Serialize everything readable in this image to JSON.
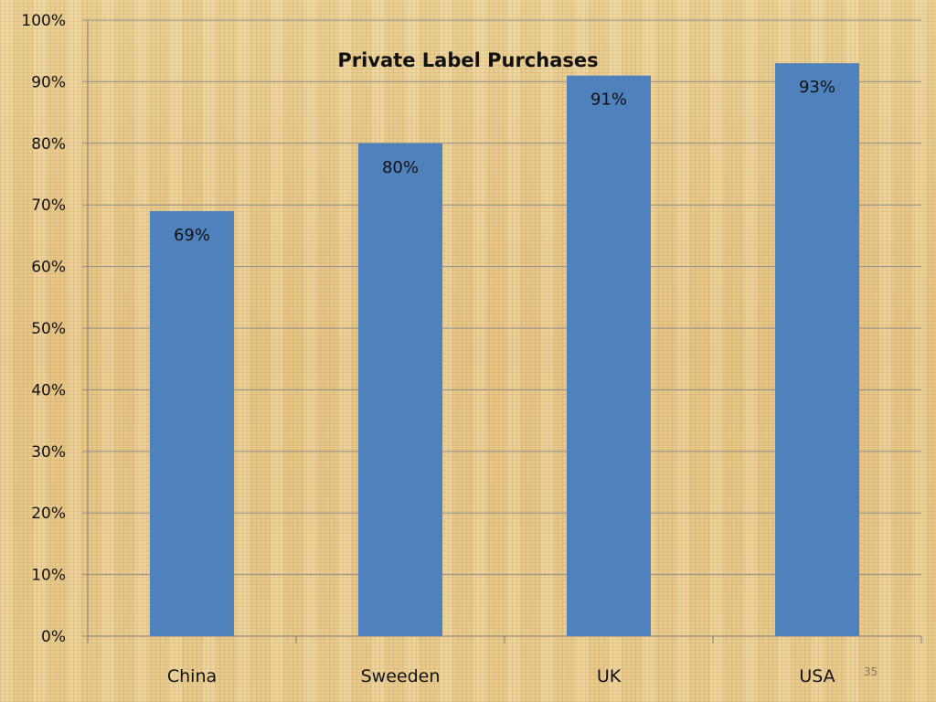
{
  "slide": {
    "page_number": "35"
  },
  "colors": {
    "bar": "#4f81bd",
    "grid": "#8f8f8f",
    "axis": "#7f7f7f"
  },
  "chart_data": {
    "type": "bar",
    "title": "Private Label Purchases",
    "categories": [
      "China",
      "Sweeden",
      "UK",
      "USA"
    ],
    "values": [
      69,
      80,
      91,
      93
    ],
    "value_labels": [
      "69%",
      "80%",
      "91%",
      "93%"
    ],
    "ylim": [
      0,
      100
    ],
    "yticks": [
      0,
      10,
      20,
      30,
      40,
      50,
      60,
      70,
      80,
      90,
      100
    ],
    "ytick_labels": [
      "0%",
      "10%",
      "20%",
      "30%",
      "40%",
      "50%",
      "60%",
      "70%",
      "80%",
      "90%",
      "100%"
    ],
    "grid": true,
    "legend": "none"
  }
}
